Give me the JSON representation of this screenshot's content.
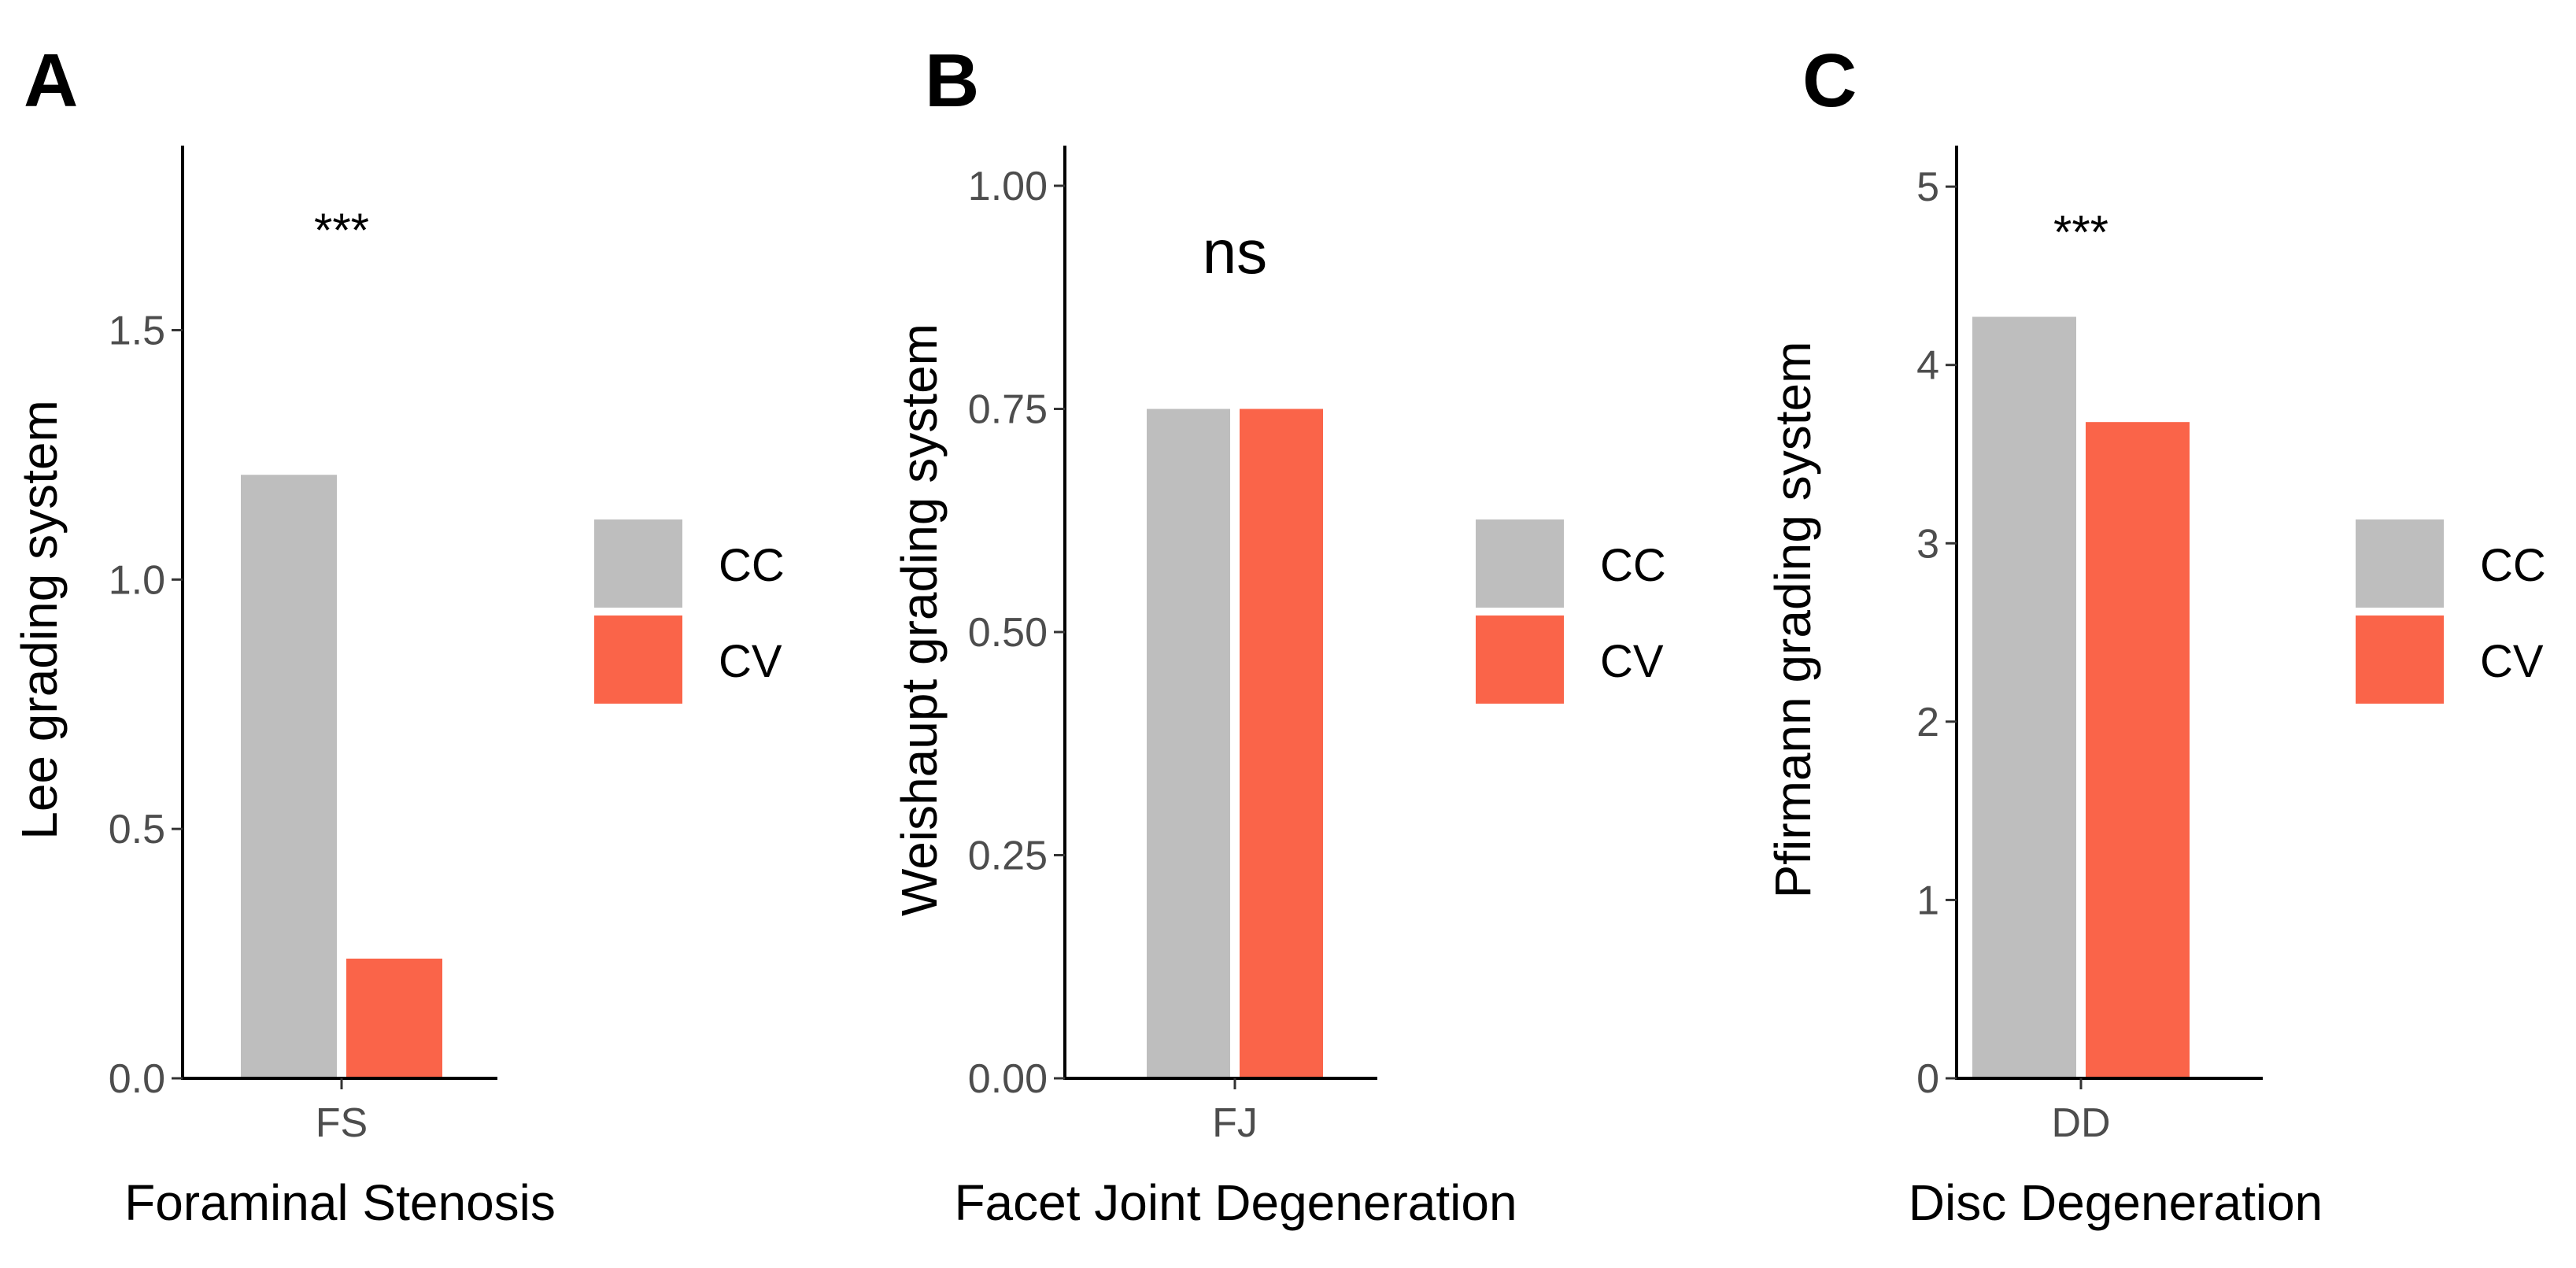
{
  "chart_data": [
    {
      "type": "bar",
      "panel_label": "A",
      "categories": [
        "FS"
      ],
      "series": [
        {
          "name": "CC",
          "values": [
            1.21
          ]
        },
        {
          "name": "CV",
          "values": [
            0.24
          ]
        }
      ],
      "xlabel": "Foraminal Stenosis",
      "ylabel": "Lee grading system",
      "ylim": [
        0,
        1.87
      ],
      "yticks": [
        0.0,
        0.5,
        1.0,
        1.5
      ],
      "ytick_labels": [
        "0.0",
        "0.5",
        "1.0",
        "1.5"
      ],
      "annotation": {
        "text": "***",
        "y": 1.72
      },
      "legend": {
        "entries": [
          "CC",
          "CV"
        ],
        "position": "right"
      },
      "grid": false
    },
    {
      "type": "bar",
      "panel_label": "B",
      "categories": [
        "FJ"
      ],
      "series": [
        {
          "name": "CC",
          "values": [
            0.75
          ]
        },
        {
          "name": "CV",
          "values": [
            0.75
          ]
        }
      ],
      "xlabel": "Facet Joint Degeneration",
      "ylabel": "Weishaupt grading system",
      "ylim": [
        0,
        1.045
      ],
      "yticks": [
        0.0,
        0.25,
        0.5,
        0.75,
        1.0
      ],
      "ytick_labels": [
        "0.00",
        "0.25",
        "0.50",
        "0.75",
        "1.00"
      ],
      "annotation": {
        "text": "ns",
        "y": 0.94
      },
      "legend": {
        "entries": [
          "CC",
          "CV"
        ],
        "position": "right"
      },
      "grid": false
    },
    {
      "type": "bar",
      "panel_label": "C",
      "categories": [
        "DD"
      ],
      "series": [
        {
          "name": "CC",
          "values": [
            4.27
          ]
        },
        {
          "name": "CV",
          "values": [
            3.68
          ]
        }
      ],
      "xlabel": "Disc Degeneration",
      "ylabel": "Pfirmann grading system",
      "ylim": [
        0,
        5.23
      ],
      "yticks": [
        0,
        1,
        2,
        3,
        4,
        5
      ],
      "ytick_labels": [
        "0",
        "1",
        "2",
        "3",
        "4",
        "5"
      ],
      "annotation": {
        "text": "***",
        "y": 4.8
      },
      "legend": {
        "entries": [
          "CC",
          "CV"
        ],
        "position": "right"
      },
      "grid": false
    }
  ],
  "colors": {
    "CC": "#bebebe",
    "CV": "#fa6449"
  }
}
